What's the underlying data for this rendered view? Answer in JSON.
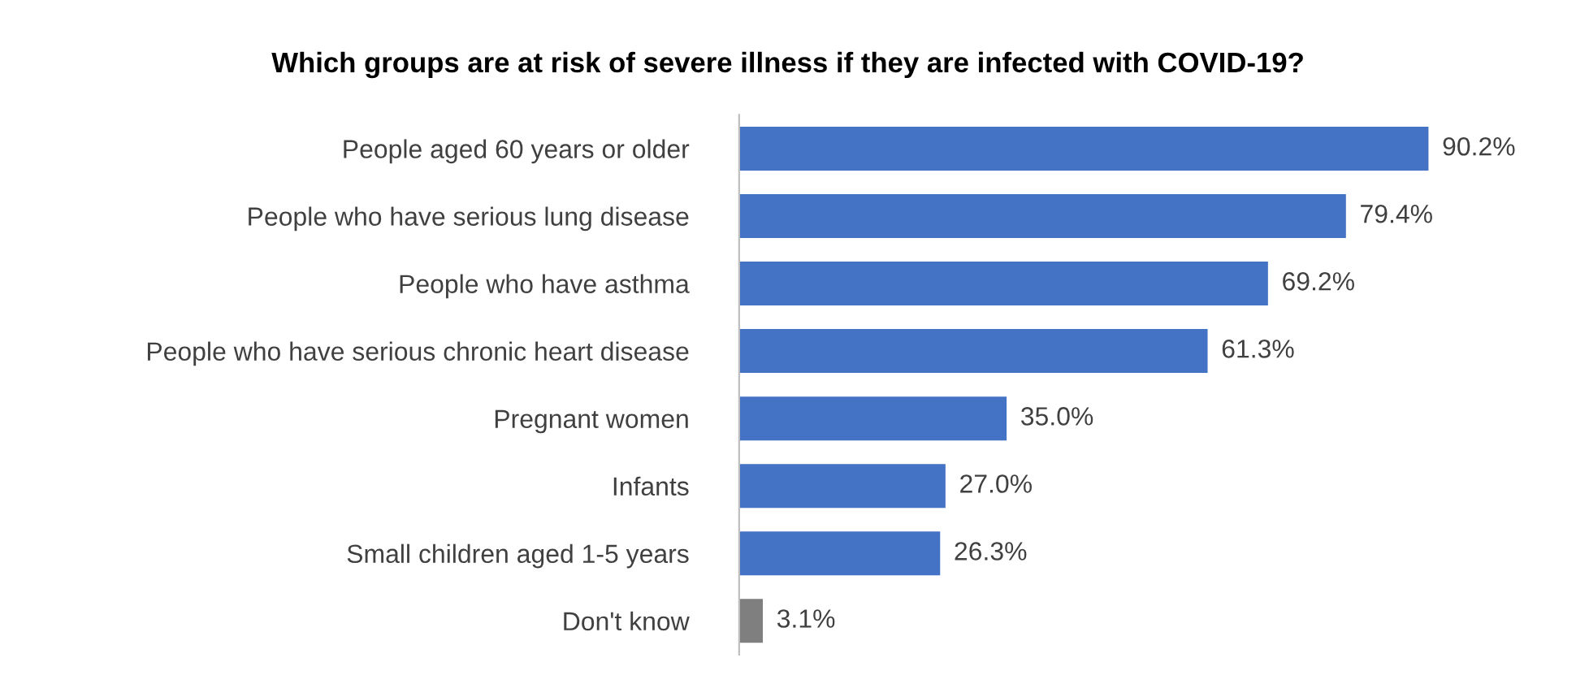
{
  "chart_data": {
    "type": "bar",
    "orientation": "horizontal",
    "title": "Which groups are at risk of severe illness if they are infected with COVID-19?",
    "categories": [
      "People aged 60 years or older",
      "People who have serious lung disease",
      "People who have asthma",
      "People who have serious chronic heart disease",
      "Pregnant women",
      "Infants",
      "Small children aged 1-5 years",
      "Don't know"
    ],
    "values": [
      90.2,
      79.4,
      69.2,
      61.3,
      35.0,
      27.0,
      26.3,
      3.1
    ],
    "value_labels": [
      "90.2%",
      "79.4%",
      "69.2%",
      "61.3%",
      "35.0%",
      "27.0%",
      "26.3%",
      "3.1%"
    ],
    "colors": [
      "#4472c4",
      "#4472c4",
      "#4472c4",
      "#4472c4",
      "#4472c4",
      "#4472c4",
      "#4472c4",
      "#7f7f7f"
    ],
    "grid": false,
    "legend": false
  }
}
